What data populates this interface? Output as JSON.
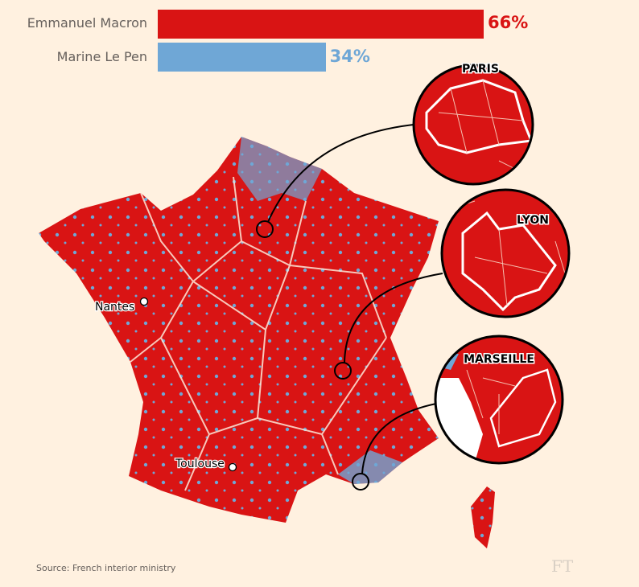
{
  "chart_data": {
    "type": "bar",
    "orientation": "horizontal",
    "categories": [
      "Emmanuel Macron",
      "Marine Le Pen"
    ],
    "values": [
      66,
      34
    ],
    "value_labels": [
      "66%",
      "34%"
    ],
    "colors": [
      "#d91414",
      "#6fa7d6"
    ],
    "xlim": [
      0,
      100
    ]
  },
  "map": {
    "cities": [
      "Nantes",
      "Toulouse"
    ],
    "insets": [
      "PARIS",
      "LYON",
      "MARSEILLE"
    ],
    "colors": {
      "macron": "#d91414",
      "le_pen": "#6fa7d6",
      "background": "#fff1e0"
    }
  },
  "footer": {
    "source": "Source: French interior ministry",
    "logo": "FT"
  }
}
